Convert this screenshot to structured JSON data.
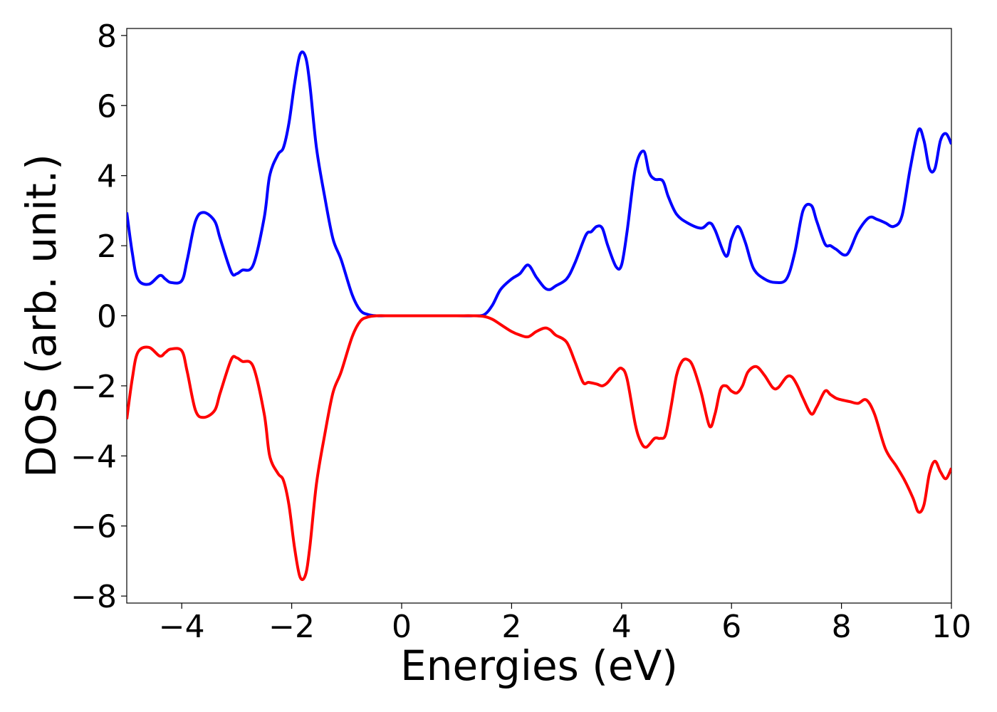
{
  "chart_data": {
    "type": "line",
    "title": "",
    "xlabel": "Energies (eV)",
    "ylabel": "DOS (arb. unit.)",
    "xlim": [
      -5,
      10
    ],
    "ylim": [
      -8.2,
      8.2
    ],
    "xticks": [
      -4,
      -2,
      0,
      2,
      4,
      6,
      8,
      10
    ],
    "yticks": [
      -8,
      -6,
      -4,
      -2,
      0,
      2,
      4,
      6,
      8
    ],
    "xtick_labels": [
      "−4",
      "−2",
      "0",
      "2",
      "4",
      "6",
      "8",
      "10"
    ],
    "ytick_labels": [
      "−8",
      "−6",
      "−4",
      "−2",
      "0",
      "2",
      "4",
      "6",
      "8"
    ],
    "grid": false,
    "legend": null,
    "series": [
      {
        "color": "#0000ff",
        "x": [
          -5.0,
          -4.9,
          -4.8,
          -4.6,
          -4.4,
          -4.3,
          -4.2,
          -4.0,
          -3.9,
          -3.75,
          -3.6,
          -3.4,
          -3.3,
          -3.1,
          -3.0,
          -2.9,
          -2.7,
          -2.5,
          -2.4,
          -2.25,
          -2.15,
          -2.05,
          -1.95,
          -1.85,
          -1.75,
          -1.67,
          -1.55,
          -1.4,
          -1.25,
          -1.1,
          -0.9,
          -0.75,
          -0.6,
          -0.45,
          -0.3,
          0.0,
          0.5,
          1.0,
          1.3,
          1.5,
          1.65,
          1.8,
          2.0,
          2.15,
          2.3,
          2.45,
          2.6,
          2.7,
          2.8,
          3.0,
          3.15,
          3.35,
          3.45,
          3.55,
          3.65,
          3.75,
          3.9,
          4.0,
          4.1,
          4.25,
          4.4,
          4.5,
          4.6,
          4.75,
          4.85,
          5.0,
          5.2,
          5.45,
          5.6,
          5.7,
          5.9,
          6.0,
          6.12,
          6.25,
          6.4,
          6.6,
          6.8,
          7.0,
          7.15,
          7.3,
          7.45,
          7.55,
          7.7,
          7.8,
          7.9,
          8.1,
          8.3,
          8.5,
          8.65,
          8.8,
          8.95,
          9.1,
          9.25,
          9.4,
          9.5,
          9.6,
          9.7,
          9.8,
          9.9,
          10.0
        ],
        "values": [
          2.95,
          1.8,
          1.05,
          0.9,
          1.15,
          1.05,
          0.95,
          1.0,
          1.6,
          2.7,
          2.95,
          2.7,
          2.2,
          1.25,
          1.2,
          1.3,
          1.45,
          2.8,
          4.0,
          4.6,
          4.8,
          5.5,
          6.6,
          7.45,
          7.4,
          6.6,
          4.8,
          3.4,
          2.2,
          1.6,
          0.6,
          0.15,
          0.03,
          0.0,
          0.0,
          0.0,
          0.0,
          0.0,
          0.0,
          0.03,
          0.3,
          0.75,
          1.05,
          1.2,
          1.45,
          1.1,
          0.8,
          0.75,
          0.85,
          1.05,
          1.5,
          2.3,
          2.4,
          2.55,
          2.5,
          2.0,
          1.4,
          1.45,
          2.4,
          4.2,
          4.7,
          4.1,
          3.9,
          3.85,
          3.4,
          2.9,
          2.65,
          2.5,
          2.65,
          2.45,
          1.7,
          2.2,
          2.55,
          2.1,
          1.35,
          1.05,
          0.95,
          1.05,
          1.8,
          3.0,
          3.15,
          2.7,
          2.05,
          2.0,
          1.9,
          1.75,
          2.4,
          2.8,
          2.75,
          2.65,
          2.55,
          2.85,
          4.2,
          5.3,
          5.0,
          4.2,
          4.2,
          5.0,
          5.2,
          4.9
        ]
      },
      {
        "color": "#ff0000",
        "x": [
          -5.0,
          -4.9,
          -4.8,
          -4.6,
          -4.4,
          -4.3,
          -4.2,
          -4.0,
          -3.9,
          -3.75,
          -3.6,
          -3.4,
          -3.3,
          -3.1,
          -3.0,
          -2.9,
          -2.7,
          -2.5,
          -2.4,
          -2.25,
          -2.15,
          -2.05,
          -1.95,
          -1.85,
          -1.75,
          -1.67,
          -1.55,
          -1.4,
          -1.25,
          -1.1,
          -0.9,
          -0.75,
          -0.6,
          -0.45,
          -0.3,
          0.0,
          0.5,
          1.0,
          1.3,
          1.5,
          1.65,
          1.8,
          2.0,
          2.15,
          2.3,
          2.45,
          2.6,
          2.7,
          2.8,
          3.0,
          3.15,
          3.3,
          3.4,
          3.55,
          3.65,
          3.75,
          3.9,
          4.0,
          4.1,
          4.25,
          4.35,
          4.45,
          4.6,
          4.7,
          4.8,
          4.9,
          5.0,
          5.1,
          5.2,
          5.3,
          5.45,
          5.6,
          5.7,
          5.8,
          5.9,
          6.0,
          6.1,
          6.2,
          6.3,
          6.45,
          6.6,
          6.75,
          6.85,
          7.0,
          7.1,
          7.2,
          7.3,
          7.45,
          7.55,
          7.7,
          7.8,
          7.9,
          8.0,
          8.15,
          8.3,
          8.45,
          8.6,
          8.8,
          9.0,
          9.15,
          9.3,
          9.4,
          9.5,
          9.6,
          9.7,
          9.8,
          9.9,
          10.0
        ],
        "values": [
          -2.95,
          -1.8,
          -1.05,
          -0.9,
          -1.15,
          -1.05,
          -0.95,
          -1.0,
          -1.6,
          -2.7,
          -2.9,
          -2.7,
          -2.2,
          -1.25,
          -1.2,
          -1.3,
          -1.45,
          -2.8,
          -4.0,
          -4.5,
          -4.7,
          -5.4,
          -6.6,
          -7.45,
          -7.4,
          -6.6,
          -4.8,
          -3.4,
          -2.2,
          -1.6,
          -0.6,
          -0.15,
          -0.03,
          0.0,
          0.0,
          0.0,
          0.0,
          0.0,
          0.0,
          -0.02,
          -0.1,
          -0.25,
          -0.45,
          -0.55,
          -0.6,
          -0.45,
          -0.35,
          -0.4,
          -0.55,
          -0.75,
          -1.3,
          -1.9,
          -1.9,
          -1.95,
          -2.0,
          -1.9,
          -1.6,
          -1.5,
          -1.8,
          -3.1,
          -3.6,
          -3.75,
          -3.5,
          -3.5,
          -3.4,
          -2.6,
          -1.7,
          -1.3,
          -1.25,
          -1.45,
          -2.2,
          -3.15,
          -2.8,
          -2.1,
          -2.0,
          -2.15,
          -2.2,
          -2.0,
          -1.6,
          -1.45,
          -1.7,
          -2.05,
          -2.05,
          -1.75,
          -1.75,
          -2.0,
          -2.35,
          -2.8,
          -2.6,
          -2.15,
          -2.25,
          -2.35,
          -2.4,
          -2.45,
          -2.5,
          -2.4,
          -2.8,
          -3.8,
          -4.3,
          -4.7,
          -5.2,
          -5.6,
          -5.4,
          -4.5,
          -4.15,
          -4.45,
          -4.65,
          -4.35
        ]
      }
    ]
  }
}
